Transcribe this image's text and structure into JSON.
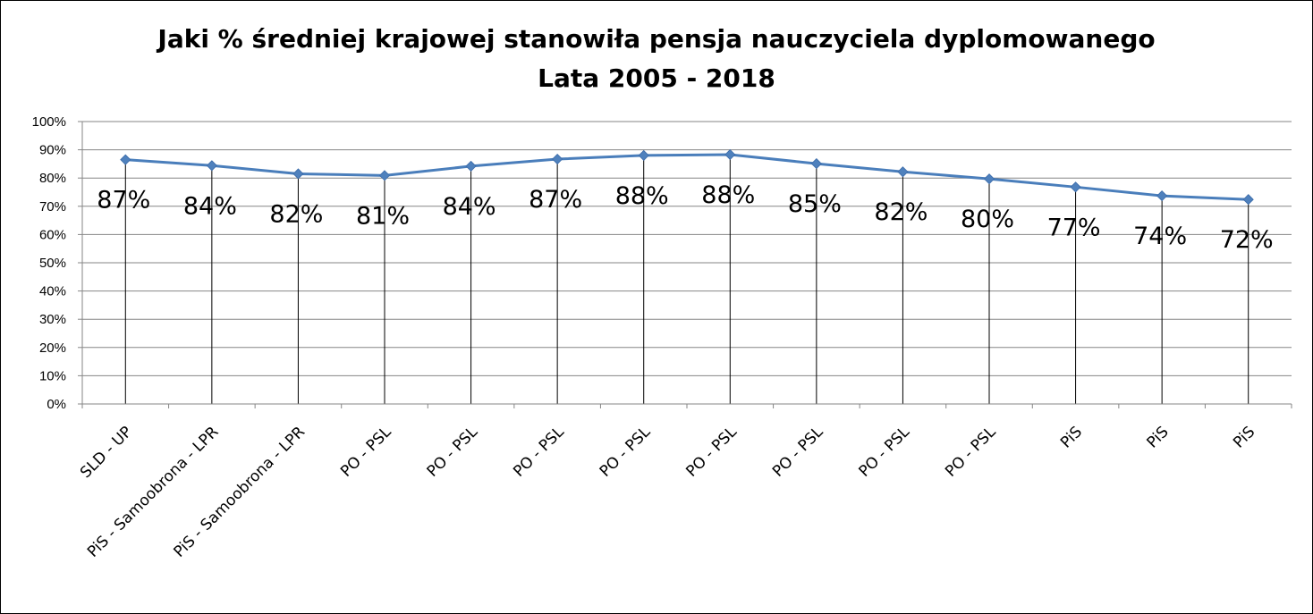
{
  "title_line1": "Jaki % średniej krajowej stanowiła pensja nauczyciela dyplomowanego",
  "title_line2": "Lata 2005 - 2018",
  "colors": {
    "series": "#4a7ebb",
    "marker": "#4f81bd",
    "grid": "#868686",
    "axis": "#868686"
  },
  "chart_data": {
    "type": "line",
    "categories": [
      "SLD - UP",
      "PiS - Samoobrona - LPR",
      "PiS - Samoobrona - LPR",
      "PO - PSL",
      "PO - PSL",
      "PO - PSL",
      "PO - PSL",
      "PO - PSL",
      "PO - PSL",
      "PO - PSL",
      "PO - PSL",
      "PiS",
      "PiS",
      "PiS"
    ],
    "values": [
      86.5,
      84.4,
      81.5,
      80.9,
      84.2,
      86.7,
      88.0,
      88.3,
      85.1,
      82.2,
      79.7,
      76.8,
      73.7,
      72.4
    ],
    "data_labels": [
      "87%",
      "84%",
      "82%",
      "81%",
      "84%",
      "87%",
      "88%",
      "88%",
      "85%",
      "82%",
      "80%",
      "77%",
      "74%",
      "72%"
    ],
    "y_ticks": [
      "0%",
      "10%",
      "20%",
      "30%",
      "40%",
      "50%",
      "60%",
      "70%",
      "80%",
      "90%",
      "100%"
    ],
    "ylim": [
      0,
      100
    ],
    "grid": true,
    "legend": "none",
    "xlabel": "",
    "ylabel": ""
  }
}
